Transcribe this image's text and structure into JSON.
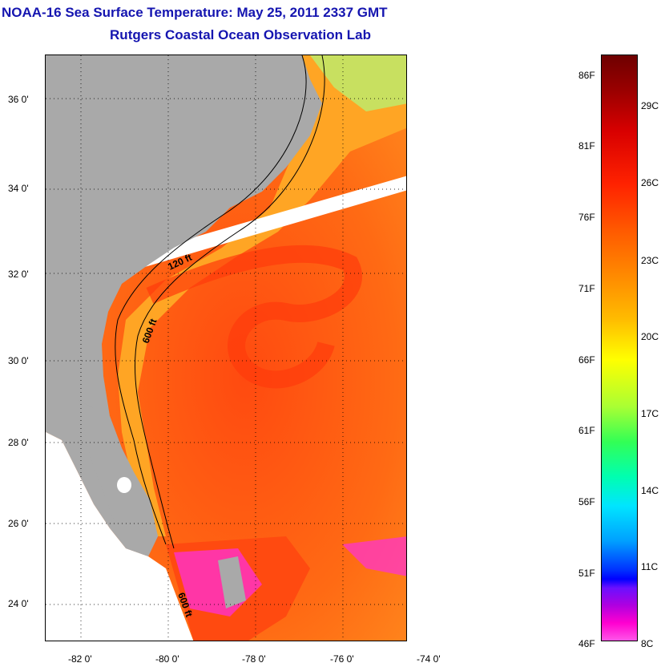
{
  "title": {
    "line1": "NOAA-16 Sea Surface Temperature:  May 25, 2011 2337 GMT",
    "line2": "Rutgers Coastal Ocean Observation Lab"
  },
  "map": {
    "lat_labels": [
      "36 0'",
      "34 0'",
      "32 0'",
      "30 0'",
      "28 0'",
      "26 0'",
      "24 0'"
    ],
    "lon_labels": [
      "-82 0'",
      "-80 0'",
      "-78 0'",
      "-76 0'",
      "-74 0'"
    ],
    "contour_labels": [
      "120 ft",
      "600 ft",
      "600 ft"
    ],
    "colors": {
      "land": "#a9a9a9",
      "ocean_warm": "#ff5a14",
      "ocean_shelf": "#ffa020",
      "no_data": "#ffffff",
      "cool_patch": "#ff30d8"
    }
  },
  "colorbar": {
    "fahrenheit": [
      "86F",
      "81F",
      "76F",
      "71F",
      "66F",
      "61F",
      "56F",
      "51F",
      "46F"
    ],
    "celsius": [
      "29C",
      "26C",
      "23C",
      "20C",
      "17C",
      "14C",
      "11C",
      "8C"
    ]
  }
}
